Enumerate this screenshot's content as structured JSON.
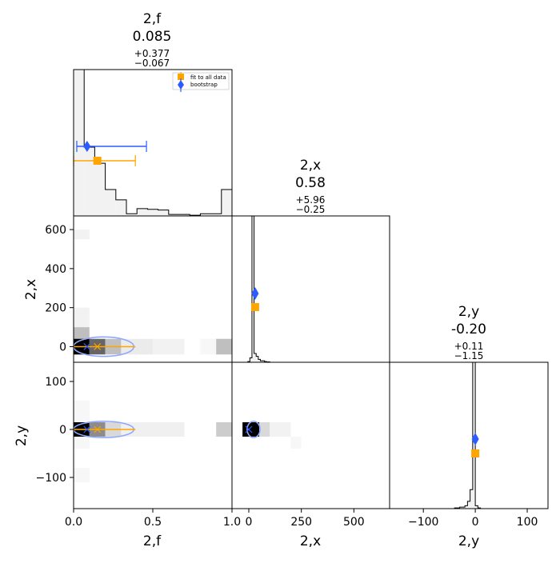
{
  "chart_data": {
    "type": "corner",
    "parameters": [
      {
        "label": "2,f",
        "median": "0.085",
        "plus": "+0.377",
        "minus": "−0.067"
      },
      {
        "label": "2,x",
        "median": "0.58",
        "plus": "+5.96",
        "minus": "−0.25"
      },
      {
        "label": "2,y",
        "median": "-0.20",
        "plus": "+0.11",
        "minus": "−1.15"
      }
    ],
    "axes": {
      "f": {
        "range": [
          0,
          1
        ],
        "ticks": [
          "0.0",
          "0.5",
          "1.0"
        ],
        "tick_values": [
          0,
          0.5,
          1
        ]
      },
      "x": {
        "range": [
          -80,
          670
        ],
        "ticks": [
          "0",
          "250",
          "500"
        ],
        "tick_values": [
          0,
          250,
          500
        ],
        "yticks": [
          "0",
          "200",
          "400",
          "600"
        ],
        "ytick_values": [
          0,
          200,
          400,
          600
        ]
      },
      "y": {
        "range": [
          -165,
          140
        ],
        "ticks": [
          "−100",
          "0",
          "100"
        ],
        "tick_values": [
          -100,
          0,
          100
        ],
        "yticks": [
          "−100",
          "0",
          "100"
        ],
        "ytick_values": [
          -100,
          0,
          100
        ]
      }
    },
    "legend": {
      "placement": "top-right",
      "entries": [
        {
          "name": "fit to all data",
          "color": "#ffa500",
          "marker": "square"
        },
        {
          "name": "bootstrap",
          "color": "#2c5cff",
          "marker": "diamond"
        }
      ]
    },
    "fit_to_all_data": {
      "f": 0.15,
      "f_err": [
        0.0,
        0.39
      ],
      "x": 170,
      "y": 0
    },
    "bootstrap": {
      "f": 0.085,
      "f_err": [
        0.02,
        0.46
      ],
      "x": 250,
      "y": -25
    },
    "hist_f": {
      "bin_edges": [
        0,
        0.0667,
        0.1333,
        0.2,
        0.2667,
        0.3333,
        0.4,
        0.4667,
        0.5333,
        0.6,
        0.6667,
        0.7333,
        0.8,
        0.8667,
        0.9333,
        1.0
      ],
      "values": [
        1.0,
        0.47,
        0.36,
        0.18,
        0.11,
        0.015,
        0.05,
        0.045,
        0.04,
        0.01,
        0.01,
        0.005,
        0.015,
        0.015,
        0.18
      ]
    },
    "hist_x": {
      "bin_edges": [
        -80,
        -5,
        5,
        15,
        25,
        35,
        45,
        55,
        65,
        75,
        85,
        100,
        670
      ],
      "values": [
        0.0,
        0.005,
        0.03,
        1.0,
        0.06,
        0.04,
        0.02,
        0.01,
        0.01,
        0.005,
        0.003,
        0.0
      ]
    },
    "hist_y": {
      "bin_edges": [
        -165,
        -40,
        -30,
        -20,
        -15,
        -10,
        -5,
        0,
        5,
        10,
        140
      ],
      "values": [
        0.0,
        0.005,
        0.01,
        0.02,
        0.05,
        0.13,
        1.0,
        0.02,
        0.005,
        0.0
      ]
    },
    "density_f_x": [
      {
        "f0": 0.0,
        "f1": 0.1,
        "x0": -40,
        "x1": 100,
        "shade": 0.25
      },
      {
        "f0": 0.0,
        "f1": 0.1,
        "x0": 100,
        "x1": 200,
        "shade": 0.05
      },
      {
        "f0": 0.0,
        "f1": 0.1,
        "x0": 550,
        "x1": 600,
        "shade": 0.05
      },
      {
        "f0": 0.0,
        "f1": 0.1,
        "x0": -40,
        "x1": 40,
        "shade": 1.0
      },
      {
        "f0": 0.1,
        "f1": 0.2,
        "x0": -40,
        "x1": 40,
        "shade": 0.6
      },
      {
        "f0": 0.2,
        "f1": 0.3,
        "x0": -40,
        "x1": 40,
        "shade": 0.25
      },
      {
        "f0": 0.3,
        "f1": 0.5,
        "x0": -40,
        "x1": 40,
        "shade": 0.08
      },
      {
        "f0": 0.5,
        "f1": 0.7,
        "x0": -40,
        "x1": 40,
        "shade": 0.05
      },
      {
        "f0": 0.8,
        "f1": 0.9,
        "x0": -40,
        "x1": 40,
        "shade": 0.03
      },
      {
        "f0": 0.9,
        "f1": 1.0,
        "x0": -40,
        "x1": 40,
        "shade": 0.25
      }
    ],
    "density_f_y": [
      {
        "f0": 0.0,
        "f1": 0.1,
        "y0": -15,
        "y1": 15,
        "shade": 1.0
      },
      {
        "f0": 0.1,
        "f1": 0.2,
        "y0": -15,
        "y1": 15,
        "shade": 0.45
      },
      {
        "f0": 0.2,
        "f1": 0.3,
        "y0": -15,
        "y1": 15,
        "shade": 0.15
      },
      {
        "f0": 0.3,
        "f1": 0.7,
        "y0": -15,
        "y1": 15,
        "shade": 0.06
      },
      {
        "f0": 0.9,
        "f1": 1.0,
        "y0": -15,
        "y1": 15,
        "shade": 0.2
      },
      {
        "f0": 0.0,
        "f1": 0.1,
        "y0": 15,
        "y1": 60,
        "shade": 0.03
      },
      {
        "f0": 0.0,
        "f1": 0.1,
        "y0": -40,
        "y1": -15,
        "shade": 0.03
      },
      {
        "f0": 0.0,
        "f1": 0.1,
        "y0": -110,
        "y1": -80,
        "shade": 0.03
      }
    ],
    "density_x_y": [
      {
        "x0": -30,
        "x1": 50,
        "y0": -15,
        "y1": 15,
        "shade": 1.0
      },
      {
        "x0": 50,
        "x1": 100,
        "y0": -15,
        "y1": 15,
        "shade": 0.15
      },
      {
        "x0": 100,
        "x1": 200,
        "y0": -15,
        "y1": 15,
        "shade": 0.05
      },
      {
        "x0": 200,
        "x1": 250,
        "y0": -40,
        "y1": -15,
        "shade": 0.03
      }
    ],
    "ellipses": {
      "f_x": {
        "cf": 0.19,
        "rf": 0.19,
        "cx": 0,
        "rx": 50
      },
      "f_y": {
        "cf": 0.19,
        "rf": 0.19,
        "cy": 0,
        "ry": 17
      },
      "x_y": {
        "cx": 0,
        "rx": 80,
        "cy": 0,
        "ry": 17
      }
    },
    "colors": {
      "fit": "#ffa500",
      "bootstrap": "#2c5cff",
      "ellipse": "#8fa8ff",
      "hist_fill": "#f2f2f2"
    }
  }
}
